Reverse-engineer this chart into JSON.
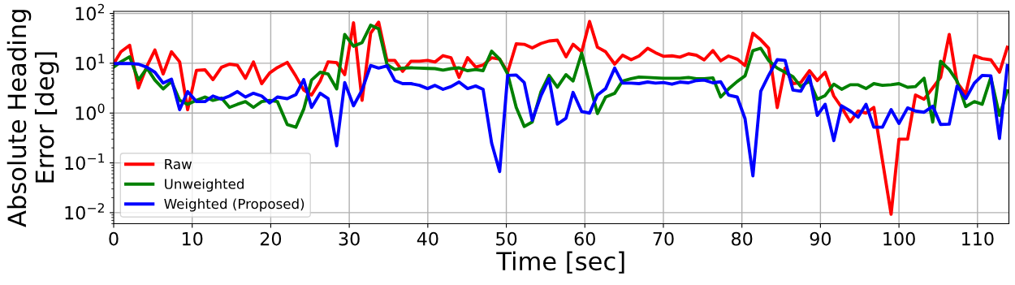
{
  "chart_data": {
    "type": "line",
    "xlabel": "Time [sec]",
    "ylabel": "Absolute Heading\nError [deg]",
    "x": [
      0,
      0.92,
      2.03,
      3.15,
      4.24,
      5.25,
      6.3,
      7.36,
      8.4,
      9.42,
      10.54,
      11.63,
      12.64,
      13.73,
      14.75,
      15.76,
      16.78,
      17.8,
      18.85,
      19.86,
      20.85,
      22.1,
      23.2,
      24.2,
      25.2,
      26.3,
      27.3,
      28.4,
      29.42,
      30.54,
      31.63,
      32.72,
      33.74,
      34.8,
      35.8,
      36.8,
      37.86,
      38.95,
      39.97,
      40.92,
      41.94,
      42.96,
      43.98,
      45.07,
      46.09,
      47.04,
      48.13,
      49.15,
      50.17,
      51.26,
      52.28,
      53.3,
      54.42,
      55.44,
      56.5,
      57.6,
      58.5,
      59.6,
      60.6,
      61.6,
      62.65,
      63.8,
      64.8,
      65.9,
      66.9,
      68.0,
      69.0,
      70.0,
      71.1,
      72.1,
      73.2,
      74.2,
      75.2,
      76.3,
      77.3,
      78.3,
      79.4,
      80.4,
      81.4,
      82.4,
      83.4,
      84.5,
      85.5,
      86.5,
      87.5,
      88.6,
      89.6,
      90.6,
      91.7,
      92.7,
      93.8,
      94.8,
      95.8,
      96.8,
      97.9,
      99.0,
      100.0,
      101.1,
      102.1,
      103.2,
      104.3,
      105.3,
      106.4,
      107.4,
      108.5,
      109.6,
      110.6,
      111.7,
      112.8,
      113.8
    ],
    "series": [
      {
        "name": "Raw",
        "color": "#ff0000",
        "values": [
          9.8,
          17,
          23,
          3.2,
          8.8,
          18.5,
          6.1,
          17,
          10.7,
          1.17,
          7.2,
          7.4,
          4.7,
          8.3,
          9.6,
          9.1,
          5.0,
          10.6,
          3.9,
          6.4,
          8.2,
          10.4,
          5.5,
          2.9,
          2.3,
          4.4,
          10.7,
          10.3,
          5.9,
          65,
          1.8,
          40,
          67,
          11.4,
          11.4,
          6.9,
          11,
          11,
          11.4,
          10.6,
          14.2,
          12.9,
          5.2,
          12.9,
          8.4,
          9.2,
          12.9,
          12.1,
          6.6,
          24.5,
          24,
          20.3,
          25,
          28,
          29,
          13.5,
          24,
          17,
          69,
          21,
          17,
          9.6,
          14.5,
          11.8,
          14,
          20,
          16.3,
          13.8,
          14.1,
          13.3,
          15.5,
          14.5,
          11.7,
          18,
          11.2,
          14,
          12.1,
          9.0,
          40,
          29.5,
          20,
          1.29,
          8.0,
          3.9,
          4.1,
          7.1,
          4.5,
          6.6,
          2.2,
          1.3,
          0.67,
          1.1,
          1.0,
          1.3,
          0.11,
          0.0093,
          0.3,
          0.3,
          2.3,
          1.9,
          3.2,
          5.2,
          38,
          4.1,
          2.4,
          14.2,
          12.4,
          11.7,
          6.6,
          21
        ]
      },
      {
        "name": "Unweighted",
        "color": "#008000",
        "values": [
          8.4,
          10.7,
          13.5,
          4.6,
          8.0,
          4.6,
          3.05,
          4.3,
          1.8,
          1.5,
          1.8,
          2.1,
          1.8,
          2.0,
          1.3,
          1.5,
          1.7,
          1.3,
          1.7,
          1.8,
          1.7,
          0.59,
          0.52,
          1.2,
          4.6,
          6.6,
          6.1,
          3.05,
          38,
          22,
          26,
          58,
          49,
          9.5,
          7.5,
          8.0,
          8.1,
          8.0,
          7.9,
          7.8,
          7.3,
          7.8,
          8.1,
          7.1,
          7.5,
          7.1,
          17.5,
          12.1,
          6.1,
          1.3,
          0.54,
          0.66,
          2.7,
          5.7,
          3.3,
          5.9,
          4.4,
          16,
          3.9,
          0.98,
          2.1,
          2.5,
          4.4,
          4.9,
          5.3,
          5.2,
          5.1,
          5.0,
          5.0,
          5.0,
          5.2,
          4.9,
          4.9,
          5.1,
          2.1,
          3.05,
          4.3,
          5.6,
          18,
          20,
          11.4,
          8.0,
          6.6,
          5.4,
          3.4,
          4.4,
          1.9,
          2.25,
          3.8,
          3.0,
          3.7,
          3.7,
          3.1,
          3.9,
          3.6,
          3.7,
          3.9,
          3.3,
          3.4,
          5.0,
          0.66,
          11,
          7.5,
          4.4,
          1.35,
          1.7,
          1.5,
          5.2,
          0.9,
          2.8
        ]
      },
      {
        "name": "Weighted (Proposed)",
        "color": "#0000ff",
        "values": [
          9.9,
          9.9,
          9.9,
          9.6,
          8.3,
          6.6,
          4.0,
          4.8,
          1.17,
          2.7,
          1.7,
          1.7,
          2.2,
          1.9,
          2.2,
          2.7,
          2.1,
          2.5,
          2.2,
          1.6,
          2.1,
          1.95,
          2.35,
          4.7,
          1.3,
          2.5,
          1.95,
          0.22,
          4.1,
          1.4,
          2.9,
          9.0,
          8.0,
          8.9,
          4.5,
          3.9,
          3.9,
          3.6,
          3.1,
          3.6,
          3.0,
          3.4,
          4.2,
          3.1,
          3.5,
          3.0,
          0.25,
          0.067,
          5.7,
          5.8,
          4.1,
          0.72,
          2.25,
          4.9,
          0.6,
          0.79,
          2.6,
          1.07,
          1.0,
          2.3,
          3.1,
          8.0,
          4.0,
          4.0,
          3.9,
          4.2,
          4.0,
          4.1,
          3.8,
          4.2,
          4.05,
          4.5,
          4.6,
          4.05,
          4.25,
          2.3,
          2.1,
          0.77,
          0.055,
          2.75,
          5.7,
          11.8,
          11.4,
          2.9,
          2.75,
          5.6,
          0.9,
          1.5,
          0.28,
          1.4,
          1.1,
          0.83,
          1.5,
          0.52,
          0.52,
          1.17,
          0.62,
          1.27,
          1.1,
          1.04,
          1.37,
          0.59,
          0.6,
          3.5,
          1.95,
          4.0,
          5.7,
          5.6,
          0.31,
          9.0
        ]
      }
    ],
    "xlim": [
      0,
      114
    ],
    "xticks": [
      0,
      10,
      20,
      30,
      40,
      50,
      60,
      70,
      80,
      90,
      100,
      110
    ],
    "ylim": [
      0.006,
      110
    ],
    "yticks": [
      {
        "value": 0.01,
        "label": "10$^{−2}$"
      },
      {
        "value": 0.1,
        "label": "10$^{−1}$"
      },
      {
        "value": 1,
        "label": "10$^{0}$"
      },
      {
        "value": 10,
        "label": "10$^{1}$"
      },
      {
        "value": 100,
        "label": "10$^{2}$"
      }
    ],
    "log": "y",
    "grid": true,
    "legend": "bottom left",
    "marker": "none",
    "line_style": "solid"
  }
}
